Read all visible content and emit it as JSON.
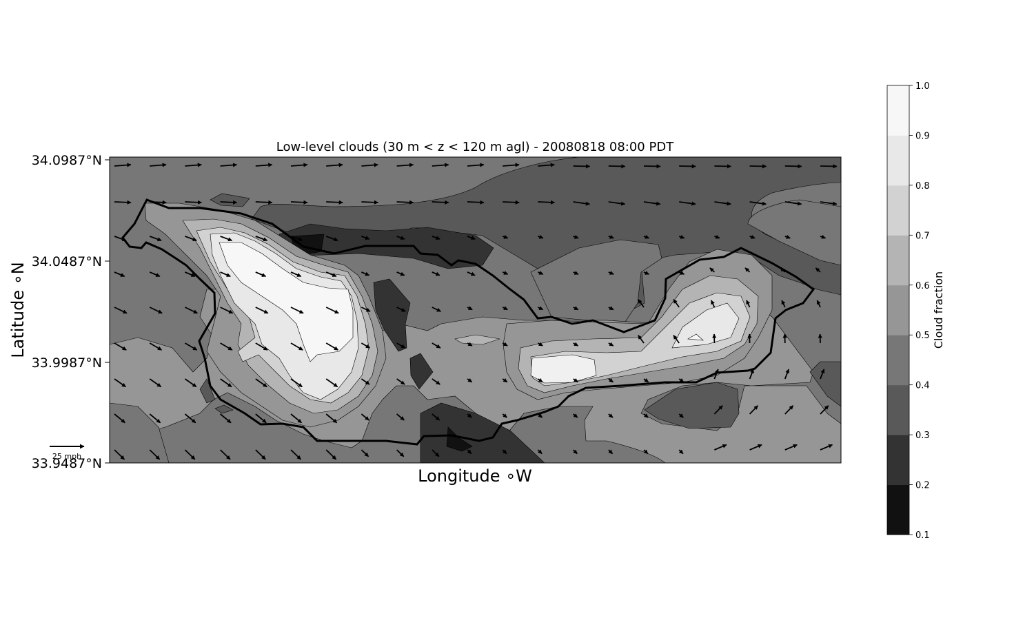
{
  "chart_data": {
    "type": "contour",
    "title": "Low-level clouds (30 m < z < 120 m agl) - 20080818 08:00 PDT",
    "xlabel": "Longitude $^\\circ$W",
    "ylabel": "Latitude $^\\circ$N",
    "xlabel_display": "Longitude ∘W",
    "ylabel_display": "Latitude ∘N",
    "y_ticks": [
      "34.0987°N",
      "34.0487°N",
      "33.9987°N",
      "33.9487°N"
    ],
    "y_tick_values": [
      34.0987,
      34.0487,
      33.9987,
      33.9487
    ],
    "ylim": [
      33.9487,
      34.0987
    ],
    "x_ticks": [],
    "grid": false,
    "colorbar": {
      "label": "Cloud fraction",
      "levels": [
        0.1,
        0.2,
        0.3,
        0.4,
        0.5,
        0.6,
        0.7,
        0.8,
        0.9,
        1.0
      ],
      "tick_labels": [
        "0.1",
        "0.2",
        "0.3",
        "0.4",
        "0.5",
        "0.6",
        "0.7",
        "0.8",
        "0.9",
        "1.0"
      ],
      "colors": [
        "#111111",
        "#333333",
        "#595959",
        "#777777",
        "#969696",
        "#b4b4b4",
        "#d2d2d2",
        "#e8e8e8",
        "#f7f7f7"
      ],
      "colormap": "greys_r",
      "placement": "right"
    },
    "quiver_key": {
      "label": "25 mph",
      "speed": 25,
      "unit": "mph"
    },
    "wind_field": "westerly to west-northwesterly, roughly 10-25 mph",
    "coastline": true
  }
}
